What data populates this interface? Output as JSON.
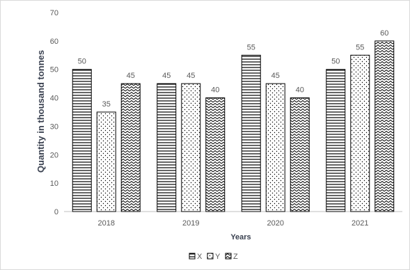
{
  "chart_data": {
    "type": "bar",
    "title": "",
    "xlabel": "Years",
    "ylabel": "Quantity in thousand tonnes",
    "categories": [
      "2018",
      "2019",
      "2020",
      "2021"
    ],
    "series": [
      {
        "name": "X",
        "values": [
          50,
          45,
          55,
          50
        ],
        "pattern": "horizontal-lines"
      },
      {
        "name": "Y",
        "values": [
          35,
          45,
          45,
          55
        ],
        "pattern": "dots"
      },
      {
        "name": "Z",
        "values": [
          45,
          40,
          40,
          60
        ],
        "pattern": "zigzag"
      }
    ],
    "ylim": [
      0,
      70
    ],
    "yticks": [
      0,
      10,
      20,
      30,
      40,
      50,
      60,
      70
    ],
    "grid": false,
    "legend_position": "bottom-center",
    "data_labels": true,
    "colors": {
      "bar_stroke": "#000000",
      "bar_fill": "#ffffff",
      "axis_text": "#595959",
      "axis_title": "#3a4150",
      "axis_line": "#bfbfbf"
    }
  }
}
